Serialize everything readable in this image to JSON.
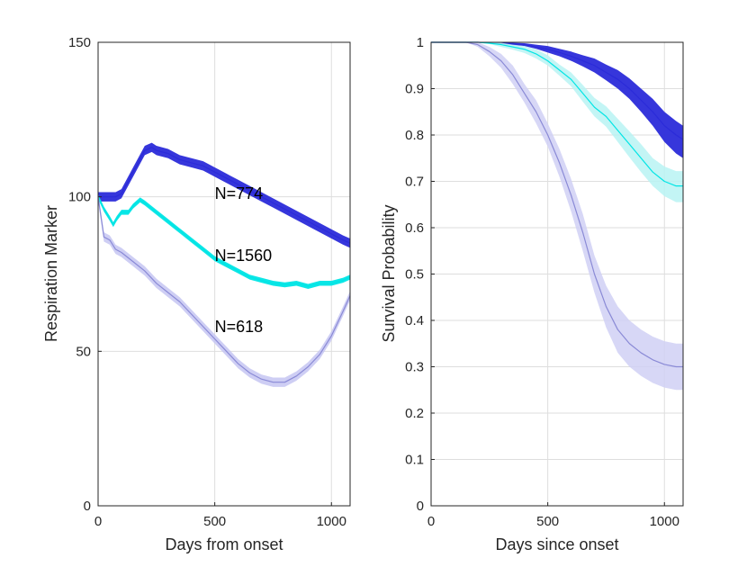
{
  "chart_data": [
    {
      "type": "line",
      "xlabel": "Days from onset",
      "ylabel": "Respiration Marker",
      "xlim": [
        0,
        1080
      ],
      "ylim": [
        0,
        150
      ],
      "xticks": [
        0,
        500,
        1000
      ],
      "yticks": [
        0,
        50,
        100,
        150
      ],
      "grid": true,
      "annotations": [
        {
          "text": "N=774",
          "x": 500,
          "y": 101
        },
        {
          "text": "N=1560",
          "x": 500,
          "y": 81
        },
        {
          "text": "N=618",
          "x": 500,
          "y": 58
        }
      ],
      "series": [
        {
          "color": "#2b2bd9",
          "band_halfwidth": 1.5,
          "x": [
            0,
            25,
            50,
            75,
            100,
            150,
            200,
            230,
            250,
            300,
            350,
            400,
            450,
            500,
            550,
            600,
            650,
            700,
            750,
            800,
            850,
            900,
            950,
            1000,
            1050,
            1080
          ],
          "y": [
            100,
            100,
            100,
            100,
            101,
            108,
            115,
            116,
            115,
            114,
            112,
            111,
            110,
            108,
            106,
            104,
            102,
            100,
            98,
            96,
            94,
            92,
            90,
            88,
            86,
            85
          ]
        },
        {
          "color": "#00e5e5",
          "band_halfwidth": 0.8,
          "x": [
            0,
            25,
            50,
            65,
            80,
            100,
            130,
            150,
            180,
            200,
            250,
            300,
            350,
            400,
            450,
            500,
            550,
            600,
            650,
            700,
            750,
            800,
            850,
            900,
            950,
            1000,
            1050,
            1080
          ],
          "y": [
            100,
            96,
            93,
            91,
            93,
            95,
            95,
            97,
            99,
            98,
            95,
            92,
            89,
            86,
            83,
            80,
            78,
            76,
            74,
            73,
            72,
            71.5,
            72,
            71,
            72,
            72,
            73,
            74
          ]
        },
        {
          "color": "#8a8ad6",
          "band_fill": "#c6c6f2",
          "band_halfwidth": 1.5,
          "x": [
            0,
            25,
            50,
            75,
            100,
            150,
            200,
            250,
            300,
            350,
            400,
            450,
            500,
            550,
            600,
            650,
            700,
            750,
            800,
            850,
            900,
            950,
            1000,
            1050,
            1080
          ],
          "y": [
            100,
            87,
            86,
            83,
            82,
            79,
            76,
            72,
            69,
            66,
            62,
            58,
            54,
            50,
            46,
            43,
            41,
            40,
            40,
            42,
            45,
            49,
            55,
            63,
            68
          ]
        }
      ]
    },
    {
      "type": "line",
      "xlabel": "Days since onset",
      "ylabel": "Survival Probability",
      "xlim": [
        0,
        1080
      ],
      "ylim": [
        0,
        1
      ],
      "xticks": [
        0,
        500,
        1000
      ],
      "yticks": [
        0,
        0.1,
        0.2,
        0.3,
        0.4,
        0.5,
        0.6,
        0.7,
        0.8,
        0.9,
        1
      ],
      "grid": true,
      "series": [
        {
          "color": "#2b2bd9",
          "x": [
            0,
            200,
            300,
            400,
            450,
            500,
            550,
            600,
            650,
            700,
            750,
            800,
            850,
            900,
            950,
            1000,
            1050,
            1080
          ],
          "y": [
            1,
            1,
            0.998,
            0.995,
            0.99,
            0.985,
            0.978,
            0.97,
            0.96,
            0.95,
            0.935,
            0.92,
            0.9,
            0.875,
            0.85,
            0.82,
            0.8,
            0.79
          ],
          "lower": [
            1,
            1,
            0.996,
            0.992,
            0.986,
            0.978,
            0.97,
            0.96,
            0.948,
            0.935,
            0.918,
            0.9,
            0.878,
            0.85,
            0.82,
            0.785,
            0.76,
            0.75
          ],
          "upper": [
            1,
            1,
            1,
            0.998,
            0.995,
            0.992,
            0.986,
            0.98,
            0.972,
            0.965,
            0.952,
            0.94,
            0.922,
            0.9,
            0.878,
            0.85,
            0.83,
            0.82
          ]
        },
        {
          "color": "#00e5e5",
          "band_fill": "#b8f3f3",
          "x": [
            0,
            200,
            250,
            300,
            350,
            400,
            450,
            500,
            550,
            600,
            650,
            700,
            750,
            800,
            850,
            900,
            950,
            1000,
            1050,
            1080
          ],
          "y": [
            1,
            1,
            0.998,
            0.995,
            0.99,
            0.985,
            0.975,
            0.96,
            0.94,
            0.92,
            0.89,
            0.86,
            0.84,
            0.81,
            0.78,
            0.75,
            0.72,
            0.7,
            0.69,
            0.69
          ],
          "lower": [
            1,
            1,
            0.996,
            0.99,
            0.984,
            0.977,
            0.965,
            0.95,
            0.928,
            0.905,
            0.872,
            0.84,
            0.818,
            0.785,
            0.752,
            0.72,
            0.69,
            0.668,
            0.655,
            0.655
          ],
          "upper": [
            1,
            1,
            1,
            0.999,
            0.995,
            0.992,
            0.985,
            0.972,
            0.952,
            0.935,
            0.908,
            0.88,
            0.862,
            0.835,
            0.808,
            0.78,
            0.75,
            0.732,
            0.722,
            0.722
          ]
        },
        {
          "color": "#8a8ad6",
          "band_fill": "#d0d0f5",
          "x": [
            0,
            150,
            200,
            250,
            300,
            350,
            400,
            450,
            500,
            550,
            600,
            650,
            700,
            750,
            800,
            850,
            900,
            950,
            1000,
            1050,
            1080
          ],
          "y": [
            1,
            1,
            0.995,
            0.98,
            0.96,
            0.93,
            0.89,
            0.85,
            0.8,
            0.74,
            0.67,
            0.59,
            0.5,
            0.43,
            0.38,
            0.35,
            0.33,
            0.315,
            0.305,
            0.3,
            0.3
          ],
          "lower": [
            1,
            1,
            0.99,
            0.97,
            0.945,
            0.91,
            0.87,
            0.825,
            0.775,
            0.71,
            0.635,
            0.55,
            0.46,
            0.385,
            0.33,
            0.3,
            0.28,
            0.265,
            0.255,
            0.25,
            0.25
          ],
          "upper": [
            1,
            1,
            1,
            0.99,
            0.975,
            0.95,
            0.91,
            0.875,
            0.825,
            0.77,
            0.705,
            0.63,
            0.54,
            0.475,
            0.43,
            0.4,
            0.38,
            0.365,
            0.355,
            0.35,
            0.35
          ]
        }
      ]
    }
  ]
}
